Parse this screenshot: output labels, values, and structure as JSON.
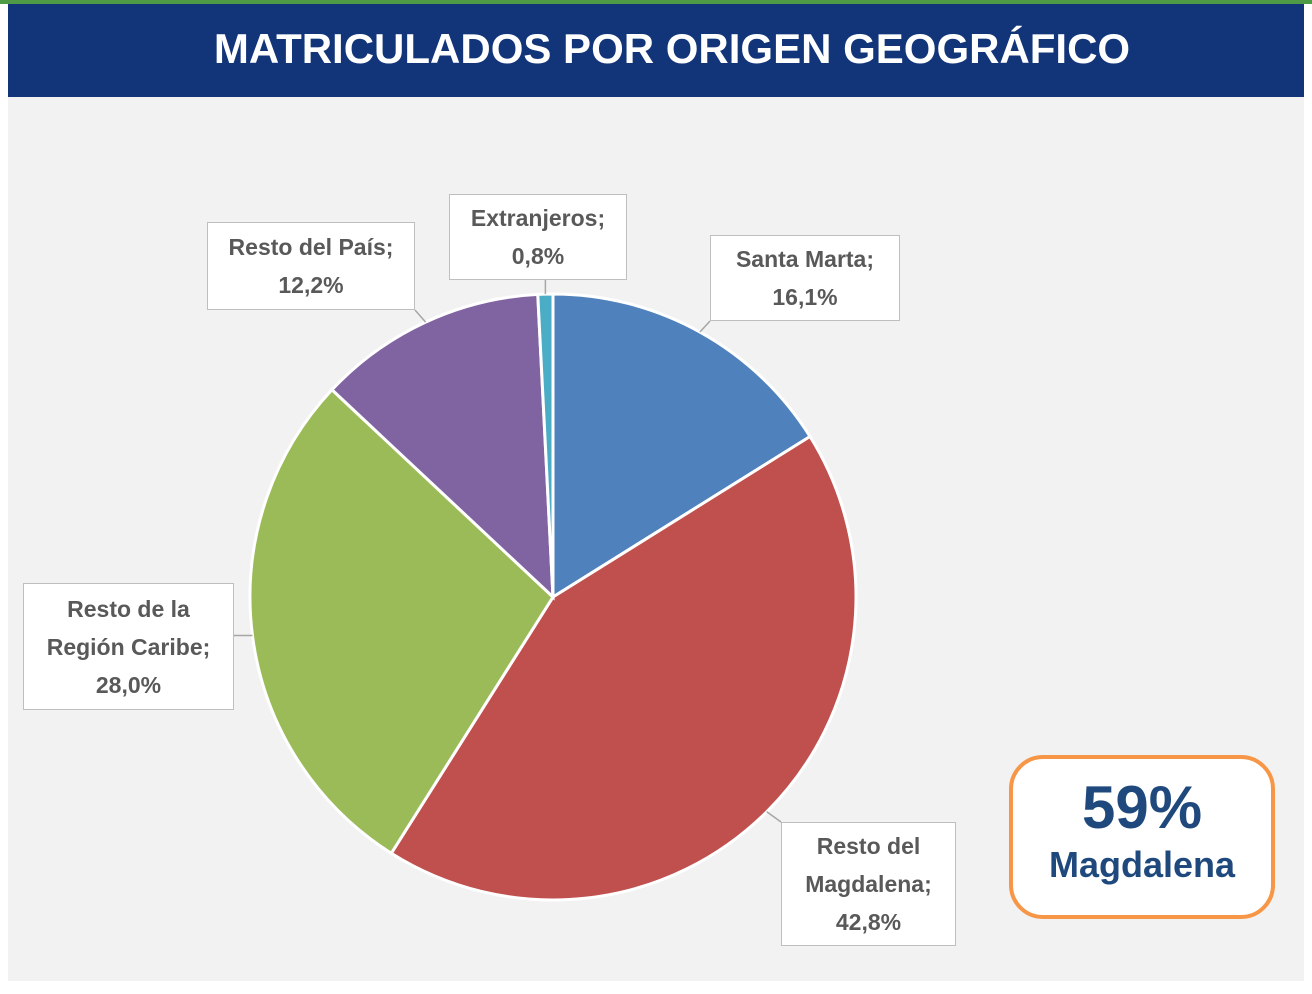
{
  "chart_data": {
    "type": "pie",
    "title": "MATRICULADOS POR ORIGEN GEOGRÁFICO",
    "categories": [
      "Santa Marta",
      "Resto del Magdalena",
      "Resto de la Región Caribe",
      "Resto del País",
      "Extranjeros"
    ],
    "values": [
      16.1,
      42.8,
      28.0,
      12.2,
      0.8
    ],
    "value_labels": [
      "16,1%",
      "42,8%",
      "28,0%",
      "12,2%",
      "0,8%"
    ],
    "label_separator": ";",
    "colors": [
      "#4f81bd",
      "#c0504d",
      "#9bbb59",
      "#8064a2",
      "#4bacc6"
    ],
    "annotation": {
      "value": 59,
      "label": "59%",
      "text": "Magdalena"
    }
  }
}
